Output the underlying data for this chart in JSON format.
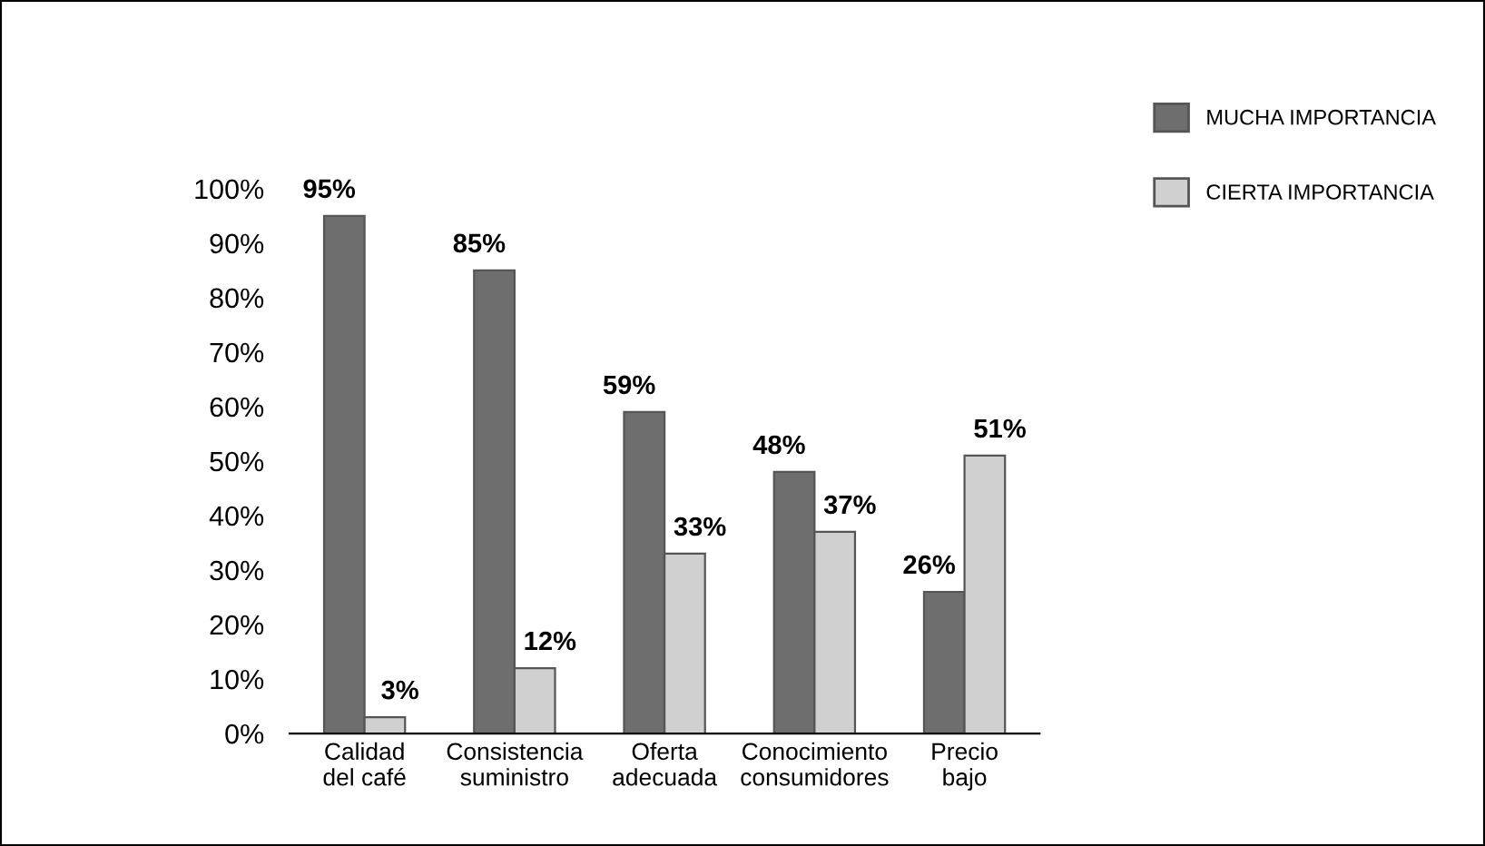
{
  "chart_data": {
    "type": "bar",
    "categories": [
      "Calidad\ndel café",
      "Consistencia\nsuministro",
      "Oferta\nadecuada",
      "Conocimiento\nconsumidores",
      "Precio\nbajo"
    ],
    "series": [
      {
        "name": "MUCHA IMPORTANCIA",
        "color": "#6e6e6e",
        "values": [
          95,
          85,
          59,
          48,
          26
        ],
        "value_labels": [
          "95%",
          "85%",
          "59%",
          "48%",
          "26%"
        ]
      },
      {
        "name": "CIERTA IMPORTANCIA",
        "color": "#d0d0d0",
        "values": [
          3,
          12,
          33,
          37,
          51
        ],
        "value_labels": [
          "3%",
          "12%",
          "33%",
          "37%",
          "51%"
        ]
      }
    ],
    "ylim": [
      0,
      100
    ],
    "yticks": [
      {
        "value": 0,
        "label": "0%"
      },
      {
        "value": 10,
        "label": "10%"
      },
      {
        "value": 20,
        "label": "20%"
      },
      {
        "value": 30,
        "label": "30%"
      },
      {
        "value": 40,
        "label": "40%"
      },
      {
        "value": 50,
        "label": "50%"
      },
      {
        "value": 60,
        "label": "60%"
      },
      {
        "value": 70,
        "label": "70%"
      },
      {
        "value": 80,
        "label": "80%"
      },
      {
        "value": 90,
        "label": "90%"
      },
      {
        "value": 100,
        "label": "100%"
      }
    ],
    "legend": "top right",
    "grid": false
  }
}
